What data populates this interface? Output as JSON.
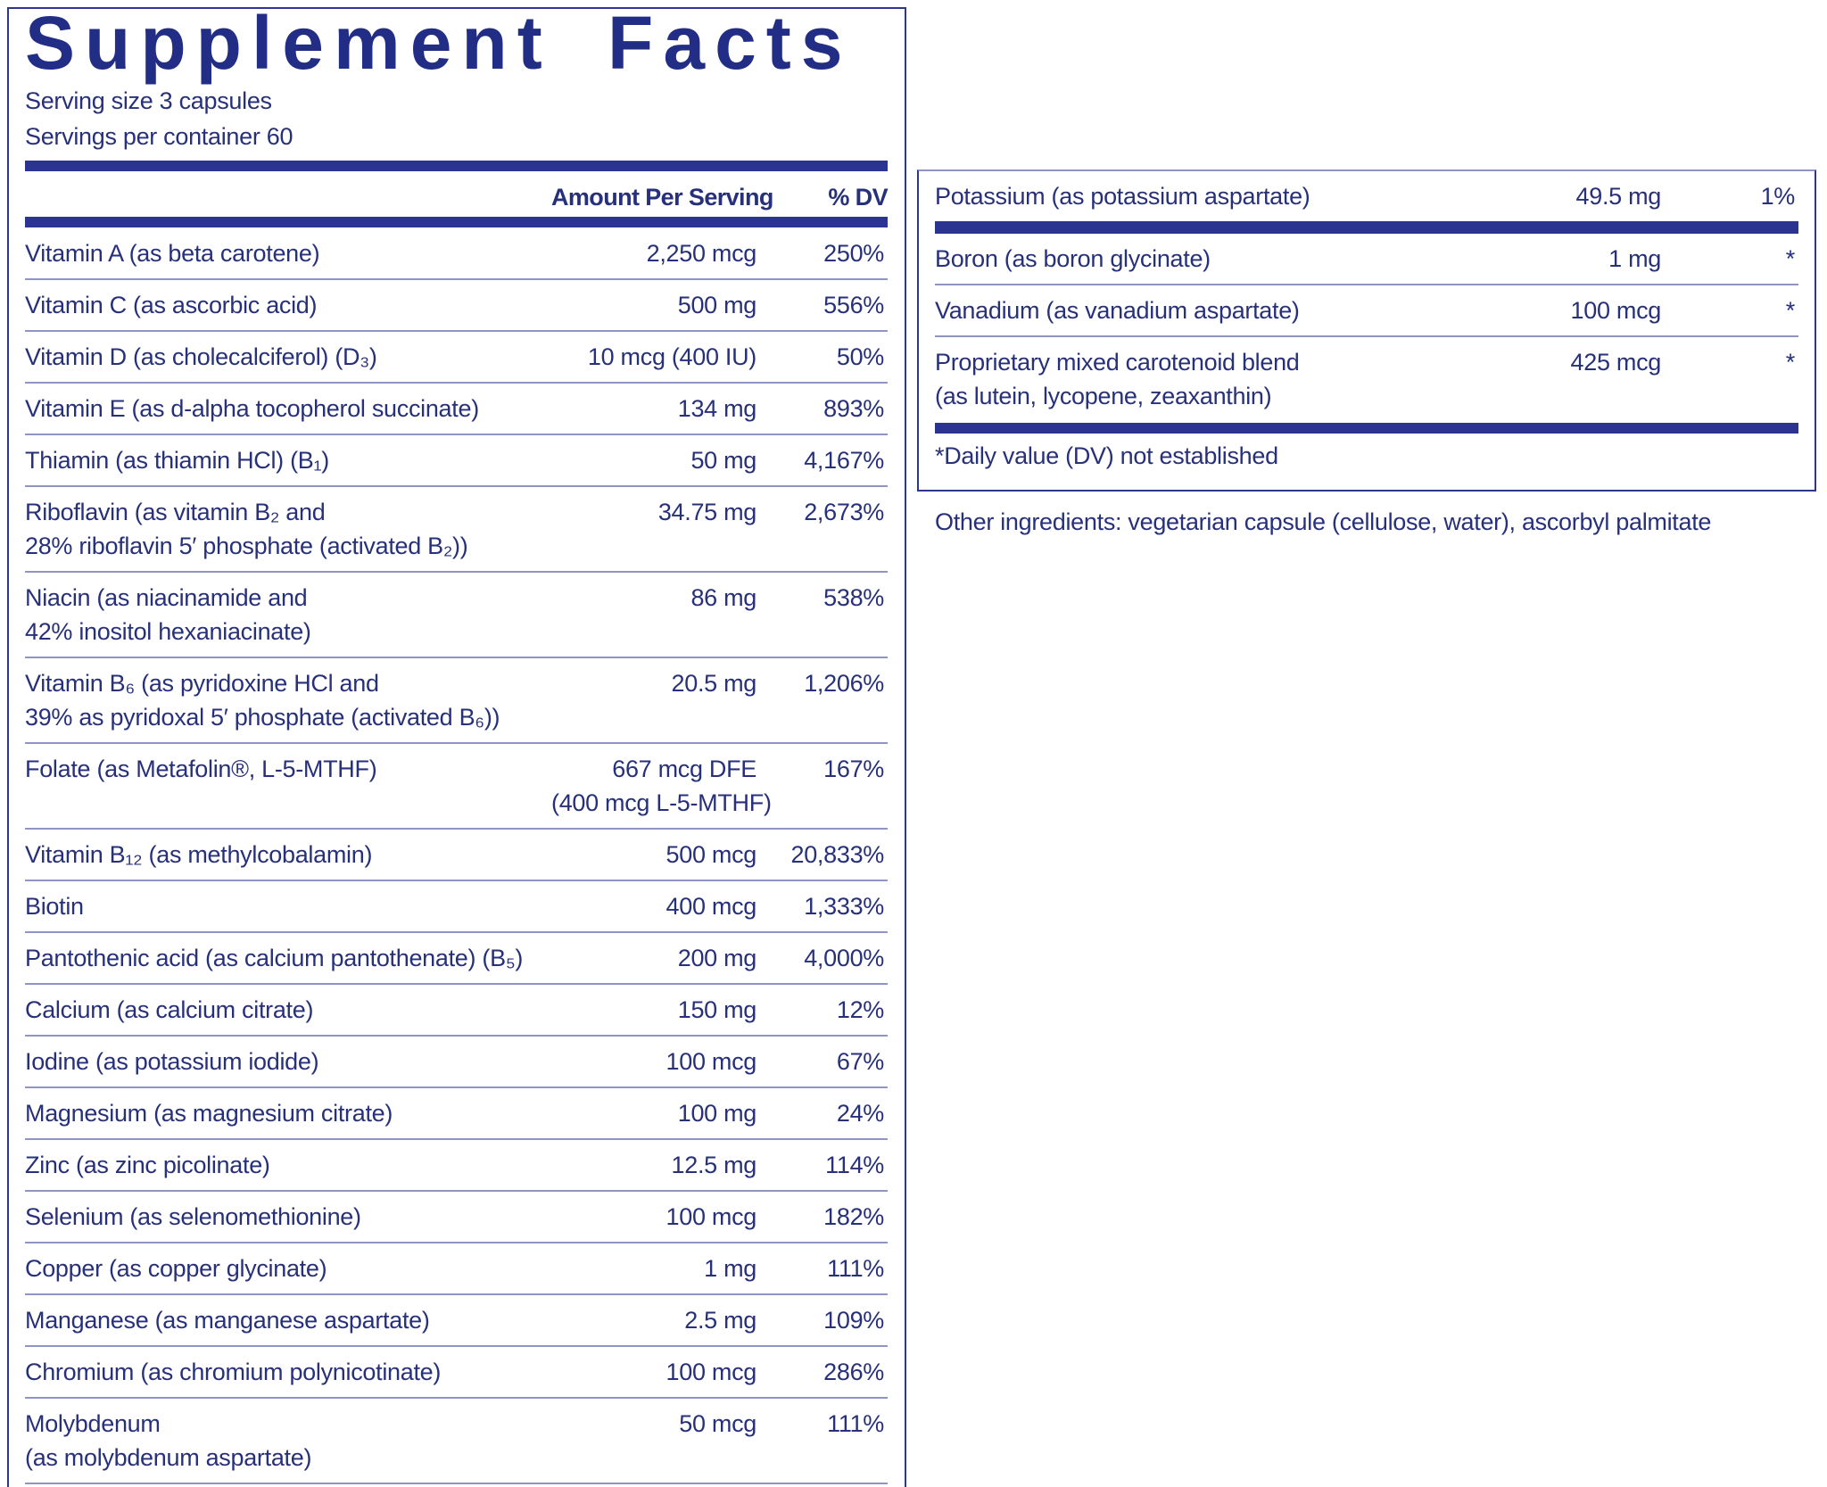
{
  "header": {
    "title": "Supplement Facts",
    "serving_size": "Serving size  3 capsules",
    "servings_per_container": "Servings per container  60"
  },
  "table": {
    "columns": [
      "Amount Per Serving",
      "% DV"
    ],
    "rows": [
      {
        "name": [
          "Vitamin A (as beta carotene)"
        ],
        "amount": [
          "2,250 mcg"
        ],
        "dv": "250%"
      },
      {
        "name": [
          "Vitamin C (as ascorbic acid)"
        ],
        "amount": [
          "500 mg"
        ],
        "dv": "556%"
      },
      {
        "name": [
          "Vitamin D (as cholecalciferol) (D₃)"
        ],
        "amount": [
          "10 mcg (400 IU)"
        ],
        "dv": "50%"
      },
      {
        "name": [
          "Vitamin E (as d-alpha tocopherol succinate)"
        ],
        "amount": [
          "134 mg"
        ],
        "dv": "893%"
      },
      {
        "name": [
          "Thiamin (as thiamin HCl) (B₁)"
        ],
        "amount": [
          "50 mg"
        ],
        "dv": "4,167%"
      },
      {
        "name": [
          "Riboflavin (as vitamin B₂ and",
          "28% riboflavin 5′ phosphate (activated B₂))"
        ],
        "amount": [
          "34.75 mg"
        ],
        "dv": "2,673%"
      },
      {
        "name": [
          "Niacin (as niacinamide and",
          "42% inositol hexaniacinate)"
        ],
        "amount": [
          "86 mg"
        ],
        "dv": "538%"
      },
      {
        "name": [
          "Vitamin B₆ (as pyridoxine HCl and",
          "39% as pyridoxal 5′ phosphate (activated B₆))"
        ],
        "amount": [
          "20.5 mg"
        ],
        "dv": "1,206%"
      },
      {
        "name": [
          "Folate (as Metafolin®, L-5-MTHF)"
        ],
        "amount": [
          "667 mcg DFE",
          "(400 mcg L-5-MTHF)"
        ],
        "dv": "167%"
      },
      {
        "name": [
          "Vitamin B₁₂ (as methylcobalamin)"
        ],
        "amount": [
          "500 mcg"
        ],
        "dv": "20,833%"
      },
      {
        "name": [
          "Biotin"
        ],
        "amount": [
          "400 mcg"
        ],
        "dv": "1,333%"
      },
      {
        "name": [
          "Pantothenic acid (as calcium pantothenate) (B₅)"
        ],
        "amount": [
          "200 mg"
        ],
        "dv": "4,000%"
      },
      {
        "name": [
          "Calcium (as calcium citrate)"
        ],
        "amount": [
          "150 mg"
        ],
        "dv": "12%"
      },
      {
        "name": [
          "Iodine (as potassium iodide)"
        ],
        "amount": [
          "100 mcg"
        ],
        "dv": "67%"
      },
      {
        "name": [
          "Magnesium (as magnesium citrate)"
        ],
        "amount": [
          "100 mg"
        ],
        "dv": "24%"
      },
      {
        "name": [
          "Zinc (as zinc picolinate)"
        ],
        "amount": [
          "12.5 mg"
        ],
        "dv": "114%"
      },
      {
        "name": [
          "Selenium (as selenomethionine)"
        ],
        "amount": [
          "100 mcg"
        ],
        "dv": "182%"
      },
      {
        "name": [
          "Copper (as copper glycinate)"
        ],
        "amount": [
          "1 mg"
        ],
        "dv": "111%"
      },
      {
        "name": [
          "Manganese (as manganese aspartate)"
        ],
        "amount": [
          "2.5 mg"
        ],
        "dv": "109%"
      },
      {
        "name": [
          "Chromium (as chromium polynicotinate)"
        ],
        "amount": [
          "100 mcg"
        ],
        "dv": "286%"
      },
      {
        "name": [
          "Molybdenum",
          "(as molybdenum aspartate)"
        ],
        "amount": [
          "50 mcg"
        ],
        "dv": "111%"
      }
    ]
  },
  "right_table": {
    "rows": [
      {
        "name": [
          "Potassium (as potassium aspartate)"
        ],
        "amount": [
          "49.5 mg"
        ],
        "dv": "1%"
      },
      {
        "name": [
          "Boron (as boron glycinate)"
        ],
        "amount": [
          "1 mg"
        ],
        "dv": "*"
      },
      {
        "name": [
          "Vanadium (as vanadium aspartate)"
        ],
        "amount": [
          "100 mcg"
        ],
        "dv": "*"
      },
      {
        "name": [
          "Proprietary mixed carotenoid blend",
          "(as lutein, lycopene, zeaxanthin)"
        ],
        "amount": [
          "425 mcg"
        ],
        "dv": "*"
      }
    ]
  },
  "footnote": "*Daily value (DV) not established",
  "other_ingredients": "Other ingredients: vegetarian capsule (cellulose, water), ascorbyl palmitate"
}
